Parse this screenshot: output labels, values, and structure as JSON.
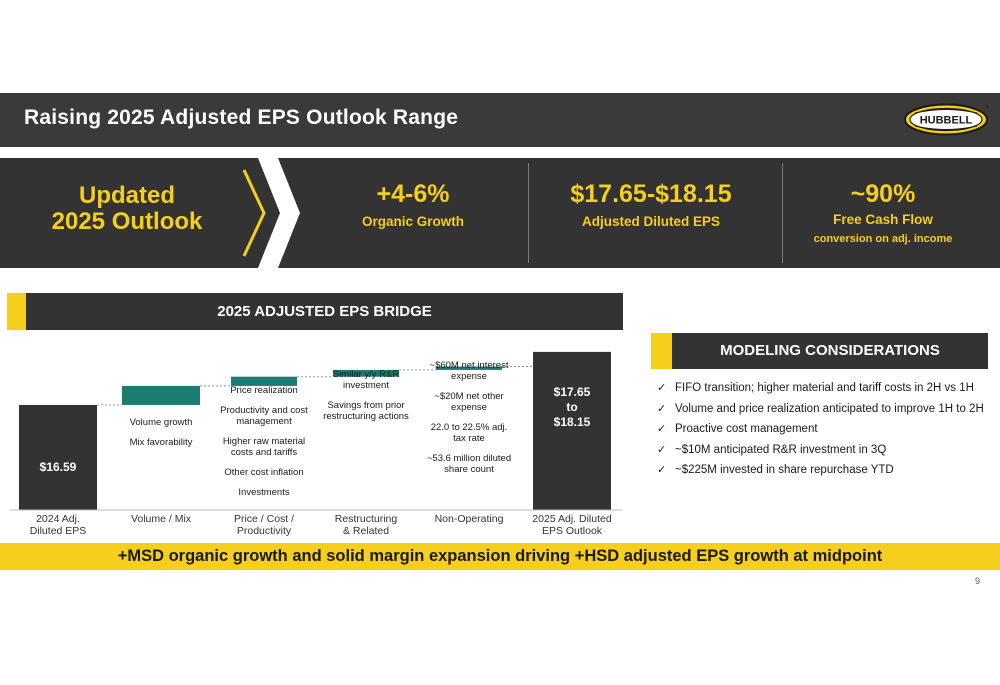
{
  "slide": {
    "title": "Raising 2025 Adjusted EPS Outlook Range",
    "logo_text": "HUBBELL",
    "page_number": "9"
  },
  "outlook": {
    "heading_line1": "Updated",
    "heading_line2": "2025 Outlook",
    "metrics": [
      {
        "value": "+4-6%",
        "label": "Organic Growth",
        "sublabel": ""
      },
      {
        "value": "$17.65-$18.15",
        "label": "Adjusted Diluted EPS",
        "sublabel": ""
      },
      {
        "value": "~90%",
        "label": "Free Cash Flow",
        "sublabel": "conversion on adj. income"
      }
    ]
  },
  "bridge": {
    "title": "2025 ADJUSTED EPS BRIDGE",
    "start_label": "$16.59",
    "end_label_lines": [
      "$17.65",
      "to",
      "$18.15"
    ],
    "notes": {
      "volume": [
        "Volume growth",
        "Mix favorability"
      ],
      "price": [
        "Price realization",
        "Productivity and cost management",
        "Higher raw material costs and tariffs",
        "Other cost inflation",
        "Investments"
      ],
      "restructuring": [
        "Similar y/y R&R investment",
        "Savings from prior restructuring actions"
      ],
      "nonop": [
        "~$60M net interest expense",
        "~$20M net other expense",
        "22.0 to 22.5% adj. tax rate",
        "~53.6 million diluted share count"
      ]
    }
  },
  "chart_data": {
    "type": "waterfall",
    "title": "2025 ADJUSTED EPS BRIDGE",
    "categories": [
      "2024 Adj. Diluted EPS",
      "Volume / Mix",
      "Price / Cost / Productivity",
      "Restructuring & Related",
      "Non-Operating",
      "2025 Adj. Diluted EPS Outlook"
    ],
    "bar_kinds": [
      "total",
      "delta",
      "delta",
      "delta",
      "delta",
      "total"
    ],
    "start_value": 16.59,
    "end_value_range": [
      17.65,
      18.15
    ],
    "delta_values_estimated": [
      0.56,
      0.27,
      0.2,
      0.1
    ],
    "ylim": [
      13.5,
      18.5
    ],
    "colors": {
      "total": "#333333",
      "delta": "#1b7c72"
    }
  },
  "modeling": {
    "title": "MODELING CONSIDERATIONS",
    "items": [
      "FIFO transition; higher material and tariff costs in 2H vs 1H",
      "Volume and price realization anticipated to improve 1H to 2H",
      "Proactive cost management",
      "~$10M anticipated R&R investment in 3Q",
      "~$225M invested in share repurchase YTD"
    ]
  },
  "banner": {
    "text": "+MSD organic growth and solid margin expansion driving +HSD adjusted EPS growth at midpoint"
  },
  "colors": {
    "accent_yellow": "#f5cf1b",
    "dark_gray": "#333333",
    "teal": "#1b7c72"
  }
}
